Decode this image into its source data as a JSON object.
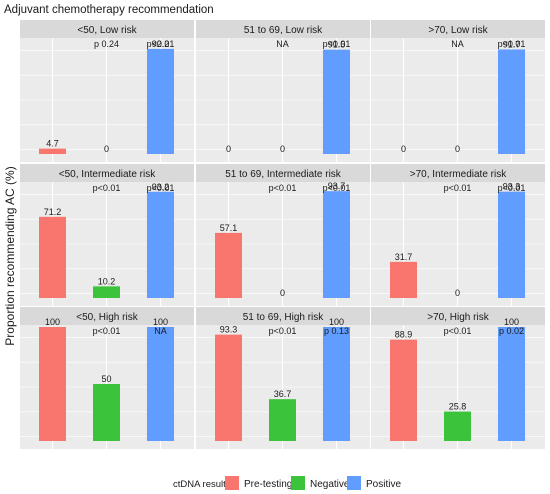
{
  "chart_data": {
    "type": "bar",
    "title": "Adjuvant chemotherapy recommendation",
    "ylabel": "Proportion recommending AC (%)",
    "xlabel": "",
    "ylim": [
      0,
      100
    ],
    "grid": true,
    "legend": {
      "title": "ctDNA results",
      "placement": "bottom",
      "entries": [
        {
          "name": "Pre-testing",
          "color": "#F8766D"
        },
        {
          "name": "Negative",
          "color": "#3CC33C"
        },
        {
          "name": "Positive",
          "color": "#619CFF"
        }
      ]
    },
    "categories": [
      "Pre-testing",
      "Negative",
      "Positive"
    ],
    "facet_rows": [
      "Low risk",
      "Intermediate risk",
      "High risk"
    ],
    "facet_cols": [
      "<50",
      "51 to 69",
      ">70"
    ],
    "panels": [
      {
        "strip": "<50, Low risk",
        "values": [
          4.7,
          0,
          92.2
        ],
        "labels": [
          "4.7",
          "0",
          "92.2"
        ],
        "pvalues": [
          "",
          "p 0.24",
          "p<0.01"
        ]
      },
      {
        "strip": "51 to 69, Low risk",
        "values": [
          0,
          0,
          91.5
        ],
        "labels": [
          "0",
          "0",
          "91.5"
        ],
        "pvalues": [
          "",
          "NA",
          "p<0.01"
        ]
      },
      {
        "strip": ">70, Low risk",
        "values": [
          0,
          0,
          91.7
        ],
        "labels": [
          "0",
          "0",
          "91.7"
        ],
        "pvalues": [
          "",
          "NA",
          "p<0.01"
        ]
      },
      {
        "strip": "<50, Intermediate risk",
        "values": [
          71.2,
          10.2,
          93.2
        ],
        "labels": [
          "71.2",
          "10.2",
          "93.2"
        ],
        "pvalues": [
          "",
          "p<0.01",
          "p<0.01"
        ]
      },
      {
        "strip": "51 to 69, Intermediate risk",
        "values": [
          57.1,
          0,
          93.7
        ],
        "labels": [
          "57.1",
          "0",
          "93.7"
        ],
        "pvalues": [
          "",
          "p<0.01",
          "p<0.01"
        ]
      },
      {
        "strip": ">70, Intermediate risk",
        "values": [
          31.7,
          0,
          93.3
        ],
        "labels": [
          "31.7",
          "0",
          "93.3"
        ],
        "pvalues": [
          "",
          "p<0.01",
          "p<0.01"
        ]
      },
      {
        "strip": "<50, High risk",
        "values": [
          100,
          50,
          100
        ],
        "labels": [
          "100",
          "50",
          "100"
        ],
        "pvalues": [
          "",
          "p<0.01",
          "NA"
        ]
      },
      {
        "strip": "51 to 69, High risk",
        "values": [
          93.3,
          36.7,
          100
        ],
        "labels": [
          "93.3",
          "36.7",
          "100"
        ],
        "pvalues": [
          "",
          "p<0.01",
          "p 0.13"
        ]
      },
      {
        "strip": ">70, High risk",
        "values": [
          88.9,
          25.8,
          100
        ],
        "labels": [
          "88.9",
          "25.8",
          "100"
        ],
        "pvalues": [
          "",
          "p<0.01",
          "p 0.02"
        ]
      }
    ]
  },
  "colors": {
    "panel_bg": "#EBEBEB",
    "strip_bg": "#D9D9D9",
    "grid": "#FFFFFF",
    "text": "#1A1A1A"
  }
}
